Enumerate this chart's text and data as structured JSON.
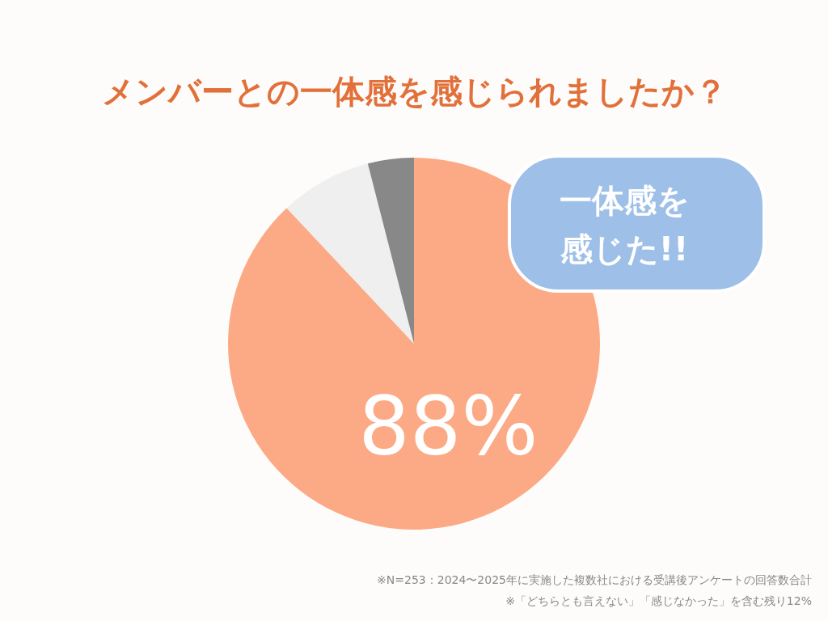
{
  "chart_data": {
    "type": "pie",
    "title": "メンバーとの一体感を感じられましたか？",
    "categories": [
      null,
      null,
      null
    ],
    "values": [
      88,
      8,
      4
    ],
    "colors": [
      "#fcaa85",
      "#efefef",
      "#888888"
    ],
    "value_labels": [
      "88%",
      null,
      null
    ],
    "annotations": [
      "一体感を",
      "感じた!!",
      "※N=253：2024〜2025年に実施した複数社における受講後アンケートの回答数合計",
      "※「どちらとも言えない」「感じなかった」を含む残り12%"
    ]
  }
}
